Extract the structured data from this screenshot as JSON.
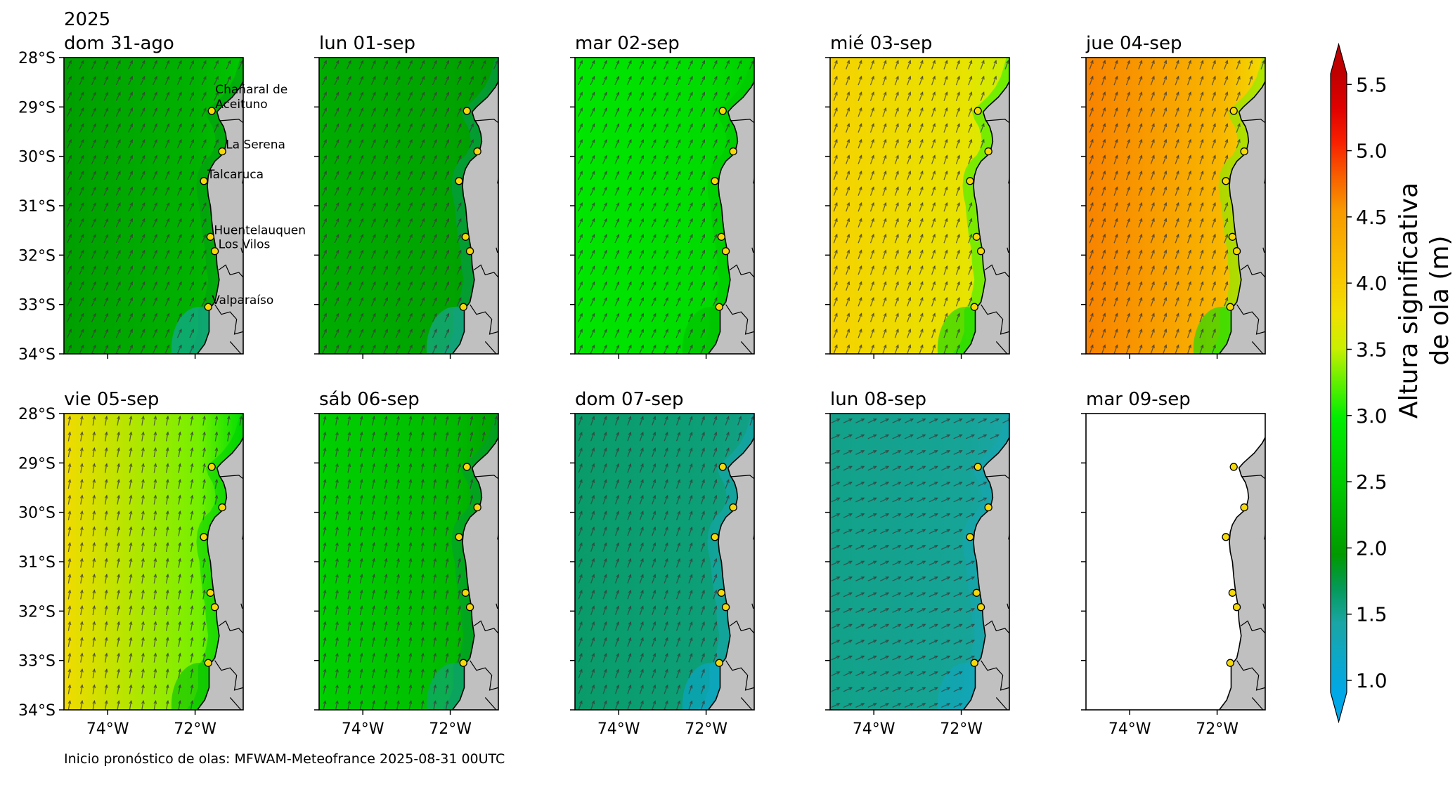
{
  "year_label": "2025",
  "footer_text": "Inicio pronóstico de olas: MFWAM-Meteofrance 2025-08-31 00UTC",
  "lat_ticks": [
    "28°S",
    "29°S",
    "30°S",
    "31°S",
    "32°S",
    "33°S",
    "34°S"
  ],
  "lon_ticks": [
    "74°W",
    "72°W"
  ],
  "lat_values": [
    -28,
    -29,
    -30,
    -31,
    -32,
    -33,
    -34
  ],
  "lon_values": [
    -74,
    -72
  ],
  "map_extent": {
    "lon_min": -75.0,
    "lon_max": -70.9,
    "lat_min": -34.0,
    "lat_max": -28.0
  },
  "land_color": "#c0c0c0",
  "coast_color": "#000000",
  "marker_color": "#f5d90a",
  "arrow_color": "#3c3c3c",
  "sites": [
    {
      "name": "Chañaral de Aceituno",
      "label_lines": [
        "Chañaral de",
        "Aceituno"
      ],
      "lon": -71.62,
      "lat": -29.08
    },
    {
      "name": "La Serena",
      "label_lines": [
        "La Serena"
      ],
      "lon": -71.38,
      "lat": -29.9
    },
    {
      "name": "Talcaruca",
      "label_lines": [
        "Talcaruca"
      ],
      "lon": -71.8,
      "lat": -30.5
    },
    {
      "name": "Huentelauquen",
      "label_lines": [
        "Huentelauquen"
      ],
      "lon": -71.65,
      "lat": -31.63
    },
    {
      "name": "Los Vilos",
      "label_lines": [
        "Los Vilos"
      ],
      "lon": -71.55,
      "lat": -31.92
    },
    {
      "name": "Valparaíso",
      "label_lines": [
        "Valparaíso"
      ],
      "lon": -71.7,
      "lat": -33.05
    }
  ],
  "colorbar": {
    "label_lines": [
      "Altura significativa",
      "de ola (m)"
    ],
    "ticks": [
      "1.0",
      "1.5",
      "2.0",
      "2.5",
      "3.0",
      "3.5",
      "4.0",
      "4.5",
      "5.0",
      "5.5"
    ],
    "min": 1.0,
    "max": 5.5,
    "extend": "both",
    "stops": [
      {
        "v": 1.0,
        "c": "#00a8e8"
      },
      {
        "v": 1.5,
        "c": "#1aa6a6"
      },
      {
        "v": 1.75,
        "c": "#059a5a"
      },
      {
        "v": 2.0,
        "c": "#009a00"
      },
      {
        "v": 2.5,
        "c": "#00c800"
      },
      {
        "v": 3.0,
        "c": "#00ee00"
      },
      {
        "v": 3.25,
        "c": "#5ff000"
      },
      {
        "v": 3.5,
        "c": "#c8f000"
      },
      {
        "v": 3.75,
        "c": "#f0e000"
      },
      {
        "v": 4.0,
        "c": "#f8c800"
      },
      {
        "v": 4.5,
        "c": "#f89a00"
      },
      {
        "v": 4.75,
        "c": "#f86000"
      },
      {
        "v": 5.0,
        "c": "#f82000"
      },
      {
        "v": 5.25,
        "c": "#e00000"
      },
      {
        "v": 5.5,
        "c": "#c00000"
      }
    ]
  },
  "panels": [
    {
      "title": "dom 31-ago",
      "show_lat": true,
      "show_lon": false,
      "show_site_labels": true,
      "has_data": true,
      "wave_field": {
        "west_height_m": 2.05,
        "coast_height_m": 2.5,
        "south_coast_height_m": 1.4
      },
      "arrow_direction_deg": 25
    },
    {
      "title": "lun 01-sep",
      "show_lat": false,
      "show_lon": false,
      "show_site_labels": false,
      "has_data": true,
      "wave_field": {
        "west_height_m": 2.2,
        "coast_height_m": 2.0,
        "south_coast_height_m": 1.5
      },
      "arrow_direction_deg": 25
    },
    {
      "title": "mar 02-sep",
      "show_lat": false,
      "show_lon": false,
      "show_site_labels": false,
      "has_data": true,
      "wave_field": {
        "west_height_m": 2.9,
        "coast_height_m": 2.6,
        "south_coast_height_m": 2.4
      },
      "arrow_direction_deg": 25
    },
    {
      "title": "mié 03-sep",
      "show_lat": false,
      "show_lon": false,
      "show_site_labels": false,
      "has_data": true,
      "wave_field": {
        "west_height_m": 3.9,
        "coast_height_m": 3.5,
        "south_coast_height_m": 2.7
      },
      "arrow_direction_deg": 20
    },
    {
      "title": "jue 04-sep",
      "show_lat": false,
      "show_lon": false,
      "show_site_labels": false,
      "has_data": true,
      "wave_field": {
        "west_height_m": 4.6,
        "coast_height_m": 3.8,
        "south_coast_height_m": 2.8,
        "peak_height_m": 5.1
      },
      "arrow_direction_deg": 20
    },
    {
      "title": "vie 05-sep",
      "show_lat": true,
      "show_lon": true,
      "show_site_labels": false,
      "has_data": true,
      "wave_field": {
        "west_height_m": 3.8,
        "coast_height_m": 2.8,
        "south_coast_height_m": 2.4
      },
      "arrow_direction_deg": 10
    },
    {
      "title": "sáb 06-sep",
      "show_lat": false,
      "show_lon": true,
      "show_site_labels": false,
      "has_data": true,
      "wave_field": {
        "west_height_m": 2.6,
        "coast_height_m": 2.1,
        "south_coast_height_m": 1.6
      },
      "arrow_direction_deg": 12
    },
    {
      "title": "dom 07-sep",
      "show_lat": false,
      "show_lon": true,
      "show_site_labels": false,
      "has_data": true,
      "wave_field": {
        "west_height_m": 1.7,
        "coast_height_m": 1.6,
        "south_coast_height_m": 1.2
      },
      "arrow_direction_deg": 20
    },
    {
      "title": "lun 08-sep",
      "show_lat": false,
      "show_lon": true,
      "show_site_labels": false,
      "has_data": true,
      "wave_field": {
        "west_height_m": 1.6,
        "coast_height_m": 1.5,
        "south_coast_height_m": 1.3
      },
      "arrow_direction_deg": 65
    },
    {
      "title": "mar 09-sep",
      "show_lat": false,
      "show_lon": true,
      "show_site_labels": false,
      "has_data": false,
      "wave_field": null,
      "arrow_direction_deg": null
    }
  ]
}
